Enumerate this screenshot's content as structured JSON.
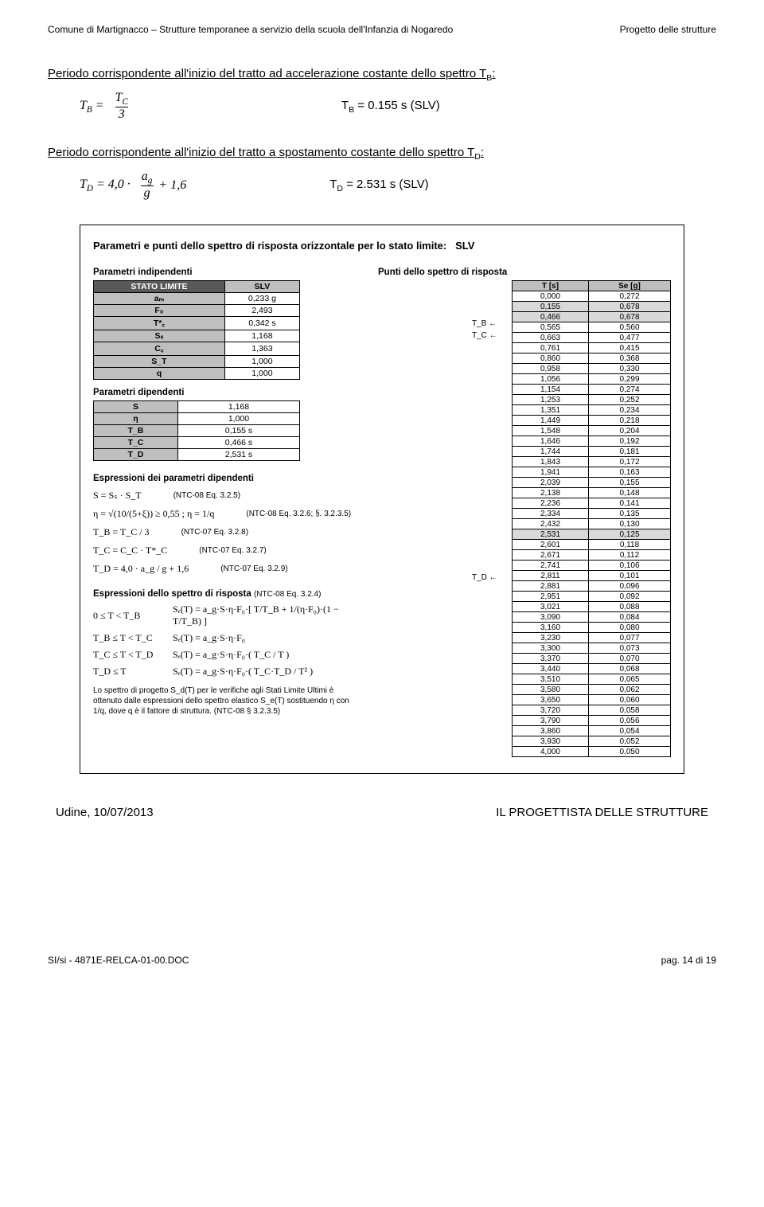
{
  "header": {
    "left": "Comune di Martignacco – Strutture temporanee a servizio della scuola dell'Infanzia di Nogaredo",
    "right": "Progetto delle strutture"
  },
  "section1": {
    "title": "Periodo corrispondente all'inizio del tratto ad accelerazione costante dello spettro T",
    "title_sub": "B",
    "formula_lhs": "T",
    "formula_lhs_sub": "B",
    "formula_eq": " = ",
    "formula_num": "T",
    "formula_num_sub": "C",
    "formula_den": "3",
    "result": "T",
    "result_sub": "B",
    "result_val": " = 0.155 s   (SLV)"
  },
  "section2": {
    "title": "Periodo corrispondente all'inizio del tratto a spostamento costante dello spettro T",
    "title_sub": "D",
    "formula_lhs": "T",
    "formula_lhs_sub": "D",
    "formula_eq": " = 4,0 · ",
    "formula_num": "a",
    "formula_num_sub": "g",
    "formula_den": "g",
    "formula_tail": " + 1,6",
    "result": "T",
    "result_sub": "D",
    "result_val": " = 2.531 s   (SLV)"
  },
  "box": {
    "title_prefix": "Parametri e punti dello spettro di risposta orizzontale per lo stato limite:",
    "title_state": "SLV",
    "left": {
      "h_indip": "Parametri indipendenti",
      "indip_header": [
        "STATO LIMITE",
        "SLV"
      ],
      "indip_rows": [
        [
          "aₘ",
          "0,233 g"
        ],
        [
          "F₀",
          "2,493"
        ],
        [
          "T*꜀",
          "0,342 s"
        ],
        [
          "Sₛ",
          "1,168"
        ],
        [
          "C꜀",
          "1,363"
        ],
        [
          "S_T",
          "1,000"
        ],
        [
          "q",
          "1,000"
        ]
      ],
      "h_dip": "Parametri dipendenti",
      "dip_rows": [
        [
          "S",
          "1,168"
        ],
        [
          "η",
          "1,000"
        ],
        [
          "T_B",
          "0,155 s"
        ],
        [
          "T_C",
          "0,466 s"
        ],
        [
          "T_D",
          "2,531 s"
        ]
      ],
      "h_expr_dip": "Espressioni dei parametri dipendenti",
      "expr_rows": [
        {
          "f": "S = Sₛ · S_T",
          "note": "(NTC-08 Eq. 3.2.5)"
        },
        {
          "f": "η = √(10/(5+ξ)) ≥ 0,55 ;  η = 1/q",
          "note": "(NTC-08 Eq. 3.2.6; §. 3.2.3.5)"
        },
        {
          "f": "T_B = T_C / 3",
          "note": "(NTC-07 Eq. 3.2.8)"
        },
        {
          "f": "T_C = C_C · T*_C",
          "note": "(NTC-07 Eq. 3.2.7)"
        },
        {
          "f": "T_D = 4,0 · a_g / g + 1,6",
          "note": "(NTC-07 Eq. 3.2.9)"
        }
      ],
      "h_expr_risp": "Espressioni dello spettro di risposta",
      "h_expr_risp_note": "(NTC-08 Eq. 3.2.4)",
      "piecewise": [
        {
          "cond": "0 ≤ T < T_B",
          "body": "Sₑ(T) = a_g·S·η·F₀·[ T/T_B + 1/(η·F₀)·(1 − T/T_B) ]"
        },
        {
          "cond": "T_B ≤ T < T_C",
          "body": "Sₑ(T) = a_g·S·η·F₀"
        },
        {
          "cond": "T_C ≤ T < T_D",
          "body": "Sₑ(T) = a_g·S·η·F₀·( T_C / T )"
        },
        {
          "cond": "T_D ≤ T",
          "body": "Sₑ(T) = a_g·S·η·F₀·( T_C·T_D / T² )"
        }
      ],
      "footnote": "Lo spettro di progetto S_d(T) per le verifiche agli Stati Limite Ultimi è ottenuto dalle espressioni dello spettro elastico S_e(T) sostituendo η con 1/q, dove q è il fattore di struttura. (NTC-08 § 3.2.3.5)"
    },
    "right": {
      "h": "Punti dello spettro di risposta",
      "header": [
        "T [s]",
        "Se [g]"
      ],
      "markers": {
        "TB": "T_B ←",
        "TC": "T_C ←",
        "TD": "T_D ←"
      },
      "rows": [
        [
          "0,000",
          "0,272"
        ],
        [
          "0,155",
          "0,678",
          "hl",
          "TB"
        ],
        [
          "0,466",
          "0,678",
          "hl",
          "TC"
        ],
        [
          "0,565",
          "0,560"
        ],
        [
          "0,663",
          "0,477"
        ],
        [
          "0,761",
          "0,415"
        ],
        [
          "0,860",
          "0,368"
        ],
        [
          "0,958",
          "0,330"
        ],
        [
          "1,056",
          "0,299"
        ],
        [
          "1,154",
          "0,274"
        ],
        [
          "1,253",
          "0,252"
        ],
        [
          "1,351",
          "0,234"
        ],
        [
          "1,449",
          "0,218"
        ],
        [
          "1,548",
          "0,204"
        ],
        [
          "1,646",
          "0,192"
        ],
        [
          "1,744",
          "0,181"
        ],
        [
          "1,843",
          "0,172"
        ],
        [
          "1,941",
          "0,163"
        ],
        [
          "2,039",
          "0,155"
        ],
        [
          "2,138",
          "0,148"
        ],
        [
          "2,236",
          "0,141"
        ],
        [
          "2,334",
          "0,135"
        ],
        [
          "2,432",
          "0,130"
        ],
        [
          "2,531",
          "0,125",
          "hl",
          "TD"
        ],
        [
          "2,601",
          "0,118"
        ],
        [
          "2,671",
          "0,112"
        ],
        [
          "2,741",
          "0,106"
        ],
        [
          "2,811",
          "0,101"
        ],
        [
          "2,881",
          "0,096"
        ],
        [
          "2,951",
          "0,092"
        ],
        [
          "3,021",
          "0,088"
        ],
        [
          "3,090",
          "0,084"
        ],
        [
          "3,160",
          "0,080"
        ],
        [
          "3,230",
          "0,077"
        ],
        [
          "3,300",
          "0,073"
        ],
        [
          "3,370",
          "0,070"
        ],
        [
          "3,440",
          "0,068"
        ],
        [
          "3,510",
          "0,065"
        ],
        [
          "3,580",
          "0,062"
        ],
        [
          "3,650",
          "0,060"
        ],
        [
          "3,720",
          "0,058"
        ],
        [
          "3,790",
          "0,056"
        ],
        [
          "3,860",
          "0,054"
        ],
        [
          "3,930",
          "0,052"
        ],
        [
          "4,000",
          "0,050"
        ]
      ]
    }
  },
  "closing": {
    "left": "Udine, 10/07/2013",
    "right": "IL PROGETTISTA DELLE STRUTTURE"
  },
  "footer": {
    "left": "SI/si - 4871E-RELCA-01-00.DOC",
    "right": "pag. 14 di 19"
  }
}
